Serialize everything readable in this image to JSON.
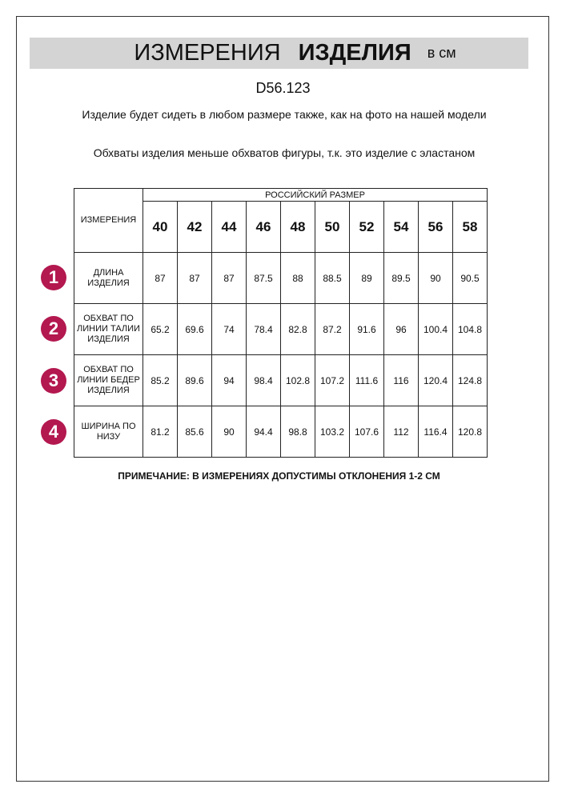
{
  "header": {
    "title_regular": "ИЗМЕРЕНИЯ",
    "title_bold": "ИЗДЕЛИЯ",
    "unit": "в см"
  },
  "product_code": "D56.123",
  "notes": [
    "Изделие будет сидеть в любом размере также, как на фото на нашей модели",
    "Обхваты изделия меньше обхватов фигуры, т.к. это изделие с эластаном"
  ],
  "table": {
    "corner_label": "ИЗМЕРЕНИЯ",
    "size_group_label": "РОССИЙСКИЙ РАЗМЕР",
    "sizes": [
      "40",
      "42",
      "44",
      "46",
      "48",
      "50",
      "52",
      "54",
      "56",
      "58"
    ],
    "rows": [
      {
        "badge": "1",
        "label": "ДЛИНА ИЗДЕЛИЯ",
        "values": [
          "87",
          "87",
          "87",
          "87.5",
          "88",
          "88.5",
          "89",
          "89.5",
          "90",
          "90.5"
        ]
      },
      {
        "badge": "2",
        "label": "ОБХВАТ ПО ЛИНИИ ТАЛИИ ИЗДЕЛИЯ",
        "values": [
          "65.2",
          "69.6",
          "74",
          "78.4",
          "82.8",
          "87.2",
          "91.6",
          "96",
          "100.4",
          "104.8"
        ]
      },
      {
        "badge": "3",
        "label": "ОБХВАТ ПО ЛИНИИ БЕДЕР ИЗДЕЛИЯ",
        "values": [
          "85.2",
          "89.6",
          "94",
          "98.4",
          "102.8",
          "107.2",
          "111.6",
          "116",
          "120.4",
          "124.8"
        ]
      },
      {
        "badge": "4",
        "label": "ШИРИНА ПО НИЗУ",
        "values": [
          "81.2",
          "85.6",
          "90",
          "94.4",
          "98.8",
          "103.2",
          "107.6",
          "112",
          "116.4",
          "120.8"
        ]
      }
    ]
  },
  "footnote": "ПРИМЕЧАНИЕ: В ИЗМЕРЕНИЯХ ДОПУСТИМЫ ОТКЛОНЕНИЯ 1-2 СМ",
  "colors": {
    "badge": "#b3184f",
    "header_band": "#d4d4d4"
  }
}
